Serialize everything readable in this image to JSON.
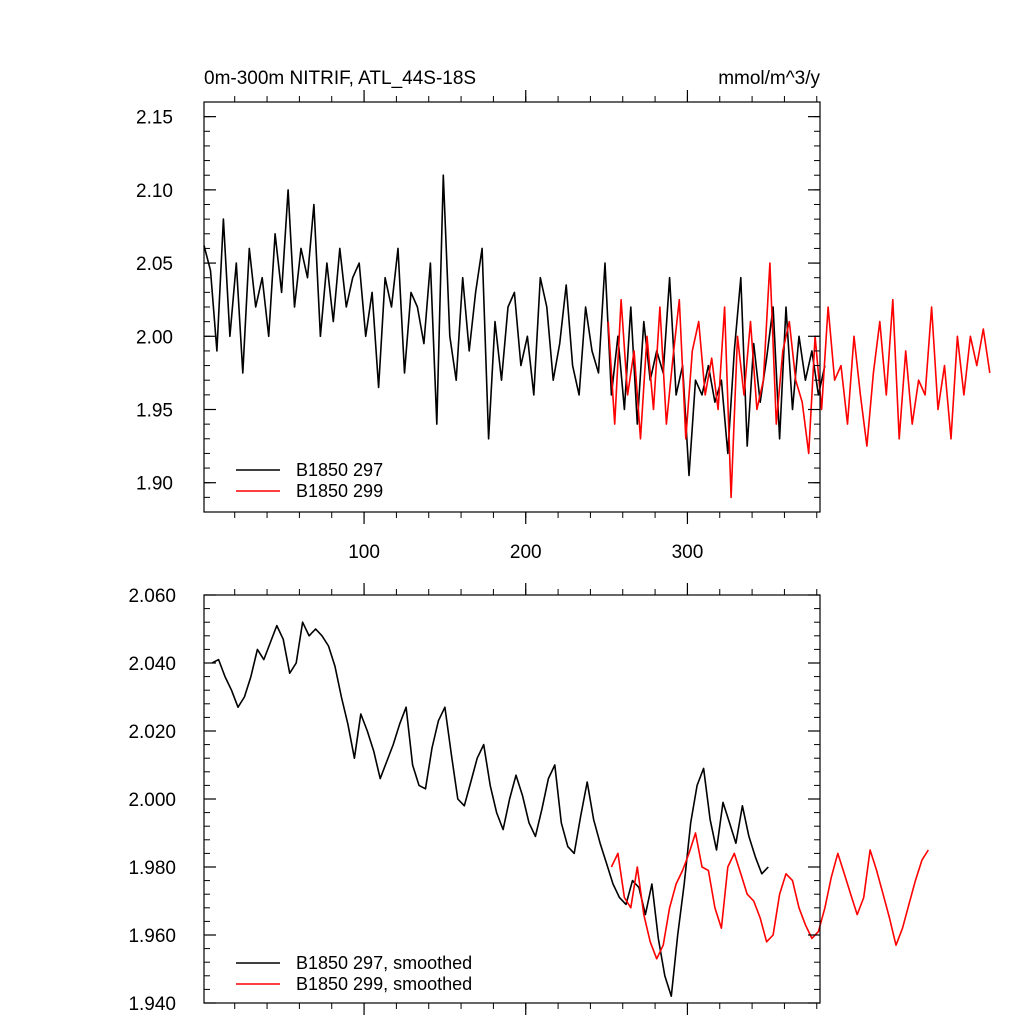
{
  "chart_data": [
    {
      "type": "line",
      "title": "0m-300m NITRIF, ATL_44S-18S",
      "units": "mmol/m^3/y",
      "xlim": [
        1,
        382
      ],
      "ylim": [
        1.88,
        2.16
      ],
      "xticks": [
        100,
        200,
        300
      ],
      "xtick_labels": [
        "100",
        "200",
        "300"
      ],
      "yticks": [
        1.9,
        1.95,
        2.0,
        2.05,
        2.1,
        2.15
      ],
      "ytick_labels": [
        "1.90",
        "1.95",
        "2.00",
        "2.05",
        "2.10",
        "2.15"
      ],
      "grid": false,
      "legend_position": "bottom-left",
      "series": [
        {
          "name": "B1850 297",
          "color": "#000000",
          "x_start": 1,
          "x_step": 4,
          "values": [
            2.062,
            2.045,
            1.99,
            2.08,
            2.0,
            2.05,
            1.975,
            2.06,
            2.02,
            2.04,
            2.0,
            2.07,
            2.03,
            2.1,
            2.02,
            2.06,
            2.04,
            2.09,
            2.0,
            2.05,
            2.01,
            2.06,
            2.02,
            2.04,
            2.05,
            2.0,
            2.03,
            1.965,
            2.04,
            2.02,
            2.06,
            1.975,
            2.03,
            2.02,
            1.995,
            2.05,
            1.94,
            2.11,
            2.0,
            1.97,
            2.04,
            1.99,
            2.03,
            2.06,
            1.93,
            2.01,
            1.97,
            2.02,
            2.03,
            1.98,
            2.0,
            1.96,
            2.04,
            2.02,
            1.97,
            1.995,
            2.035,
            1.98,
            1.96,
            2.02,
            1.99,
            1.975,
            2.05,
            1.96,
            2.0,
            1.95,
            2.02,
            1.94,
            2.01,
            1.97,
            1.99,
            1.975,
            2.04,
            1.96,
            1.98,
            1.905,
            1.97,
            1.96,
            1.98,
            1.955,
            1.97,
            1.92,
            1.99,
            2.04,
            1.925,
            1.995,
            1.955,
            1.985,
            2.02,
            1.93,
            2.02,
            1.95,
            2.0,
            1.97,
            1.99,
            1.96,
            1.98
          ]
        },
        {
          "name": "B1850 299",
          "color": "#ff0000",
          "x_start": 251,
          "x_step": 4,
          "values": [
            2.01,
            1.94,
            2.025,
            1.96,
            1.99,
            1.93,
            2.0,
            1.95,
            2.02,
            1.94,
            1.985,
            2.025,
            1.93,
            1.99,
            2.01,
            1.96,
            1.985,
            1.95,
            2.02,
            1.89,
            2.0,
            1.96,
            2.01,
            1.95,
            1.97,
            2.05,
            1.94,
            1.99,
            2.01,
            1.97,
            1.955,
            1.92,
            2.0,
            1.95,
            2.02,
            1.97,
            1.98,
            1.94,
            2.0,
            1.96,
            1.925,
            1.975,
            2.01,
            1.96,
            2.025,
            1.93,
            1.99,
            1.94,
            1.97,
            1.96,
            2.02,
            1.95,
            1.98,
            1.93,
            2.0,
            1.96,
            2.0,
            1.98,
            2.005,
            1.975
          ]
        }
      ]
    },
    {
      "type": "line",
      "xlim": [
        1,
        382
      ],
      "ylim": [
        1.94,
        2.06
      ],
      "xticks": [
        100,
        200,
        300
      ],
      "xtick_labels": [
        "",
        "",
        ""
      ],
      "yticks": [
        1.94,
        1.96,
        1.98,
        2.0,
        2.02,
        2.04,
        2.06
      ],
      "ytick_labels": [
        "1.940",
        "1.960",
        "1.980",
        "2.000",
        "2.020",
        "2.040",
        "2.060"
      ],
      "grid": false,
      "legend_position": "bottom-left",
      "series": [
        {
          "name": "B1850 297, smoothed",
          "color": "#000000",
          "x_start": 6,
          "x_step": 4,
          "values": [
            2.04,
            2.041,
            2.036,
            2.032,
            2.027,
            2.03,
            2.036,
            2.044,
            2.041,
            2.046,
            2.051,
            2.047,
            2.037,
            2.04,
            2.052,
            2.048,
            2.05,
            2.048,
            2.045,
            2.039,
            2.03,
            2.022,
            2.012,
            2.025,
            2.02,
            2.014,
            2.006,
            2.011,
            2.016,
            2.022,
            2.027,
            2.01,
            2.004,
            2.003,
            2.015,
            2.023,
            2.027,
            2.013,
            2.0,
            1.998,
            2.005,
            2.012,
            2.016,
            2.004,
            1.996,
            1.991,
            2.0,
            2.007,
            2.001,
            1.993,
            1.989,
            1.997,
            2.006,
            2.01,
            1.993,
            1.986,
            1.984,
            1.995,
            2.005,
            1.994,
            1.987,
            1.981,
            1.975,
            1.971,
            1.969,
            1.976,
            1.974,
            1.966,
            1.975,
            1.959,
            1.948,
            1.942,
            1.96,
            1.975,
            1.993,
            2.004,
            2.009,
            1.994,
            1.985,
            1.999,
            1.993,
            1.987,
            1.998,
            1.989,
            1.983,
            1.978,
            1.98
          ]
        },
        {
          "name": "B1850 299, smoothed",
          "color": "#ff0000",
          "x_start": 253,
          "x_step": 4,
          "values": [
            1.98,
            1.984,
            1.971,
            1.968,
            1.98,
            1.966,
            1.958,
            1.953,
            1.957,
            1.968,
            1.975,
            1.979,
            1.984,
            1.99,
            1.98,
            1.979,
            1.968,
            1.962,
            1.98,
            1.984,
            1.978,
            1.972,
            1.97,
            1.965,
            1.958,
            1.96,
            1.972,
            1.978,
            1.976,
            1.968,
            1.963,
            1.959,
            1.961,
            1.968,
            1.977,
            1.984,
            1.978,
            1.972,
            1.966,
            1.971,
            1.985,
            1.979,
            1.972,
            1.965,
            1.957,
            1.962,
            1.969,
            1.976,
            1.982,
            1.985
          ]
        }
      ]
    }
  ]
}
